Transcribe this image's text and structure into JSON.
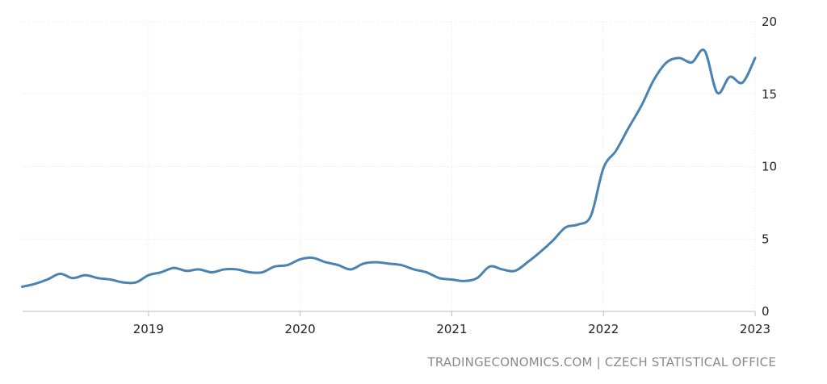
{
  "source": "TRADINGECONOMICS.COM | CZECH STATISTICAL OFFICE",
  "colors": {
    "line": "#4a82b0",
    "grid": "#e6e6e6",
    "text": "#222222",
    "source": "#8a8a8a"
  },
  "chart_data": {
    "type": "line",
    "title": "",
    "xlabel": "",
    "ylabel": "",
    "grid": true,
    "xlim": [
      2018.17,
      2023.0
    ],
    "ylim": [
      0,
      20
    ],
    "yticks": [
      "0",
      "5",
      "10",
      "15",
      "20"
    ],
    "xticks": [
      "2019",
      "2020",
      "2021",
      "2022",
      "2023"
    ],
    "y_axis_side": "right",
    "series": [
      {
        "x": [
          2018.167,
          2018.25,
          2018.333,
          2018.417,
          2018.5,
          2018.583,
          2018.667,
          2018.75,
          2018.833,
          2018.917,
          2019.0,
          2019.083,
          2019.167,
          2019.25,
          2019.333,
          2019.417,
          2019.5,
          2019.583,
          2019.667,
          2019.75,
          2019.833,
          2019.917,
          2020.0,
          2020.083,
          2020.167,
          2020.25,
          2020.333,
          2020.417,
          2020.5,
          2020.583,
          2020.667,
          2020.75,
          2020.833,
          2020.917,
          2021.0,
          2021.083,
          2021.167,
          2021.25,
          2021.333,
          2021.417,
          2021.5,
          2021.583,
          2021.667,
          2021.75,
          2021.833,
          2021.917,
          2022.0,
          2022.083,
          2022.167,
          2022.25,
          2022.333,
          2022.417,
          2022.5,
          2022.583,
          2022.667,
          2022.75,
          2022.833,
          2022.917,
          2023.0
        ],
        "values": [
          1.7,
          1.9,
          2.2,
          2.6,
          2.3,
          2.5,
          2.3,
          2.2,
          2.0,
          2.0,
          2.5,
          2.7,
          3.0,
          2.8,
          2.9,
          2.7,
          2.9,
          2.9,
          2.7,
          2.7,
          3.1,
          3.2,
          3.6,
          3.7,
          3.4,
          3.2,
          2.9,
          3.3,
          3.4,
          3.3,
          3.2,
          2.9,
          2.7,
          2.3,
          2.2,
          2.1,
          2.3,
          3.1,
          2.9,
          2.8,
          3.4,
          4.1,
          4.9,
          5.8,
          6.0,
          6.6,
          9.9,
          11.1,
          12.7,
          14.2,
          16.0,
          17.2,
          17.5,
          17.2,
          18.0,
          15.1,
          16.2,
          15.8,
          17.5
        ]
      }
    ]
  }
}
